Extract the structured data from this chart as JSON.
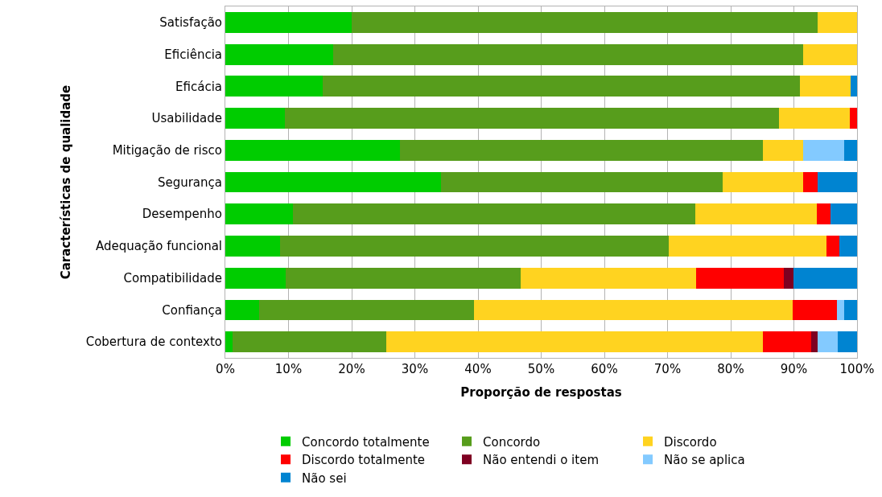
{
  "chart_data": {
    "type": "bar",
    "orientation": "horizontal",
    "stacked": true,
    "xlabel": "Proporção de respostas",
    "ylabel": "Características de qualidade",
    "categories": [
      "Satisfação",
      "Eficiência",
      "Eficácia",
      "Usabilidade",
      "Mitigação de risco",
      "Segurança",
      "Desempenho",
      "Adequação funcional",
      "Compatibilidade",
      "Confiança",
      "Cobertura de contexto"
    ],
    "series": [
      {
        "name": "Concordo totalmente",
        "color": "#00cc00",
        "values": [
          20.0,
          17.1,
          15.4,
          9.4,
          27.7,
          34.1,
          10.7,
          8.7,
          9.6,
          5.4,
          1.1
        ]
      },
      {
        "name": "Concordo",
        "color": "#579d1c",
        "values": [
          73.7,
          74.4,
          75.5,
          78.2,
          57.4,
          44.6,
          63.7,
          61.5,
          37.2,
          33.9,
          24.4
        ]
      },
      {
        "name": "Discordo",
        "color": "#ffd320",
        "values": [
          6.3,
          8.5,
          8.1,
          11.2,
          6.4,
          12.8,
          19.2,
          25.0,
          27.7,
          50.5,
          59.6
        ]
      },
      {
        "name": "Discordo totalmente",
        "color": "#ff0000",
        "values": [
          null,
          null,
          null,
          1.2,
          null,
          2.2,
          2.2,
          2.0,
          13.9,
          7.0,
          7.6
        ]
      },
      {
        "name": "Não entendi o item",
        "color": "#7e0021",
        "values": [
          null,
          null,
          null,
          null,
          null,
          null,
          null,
          null,
          1.5,
          null,
          1.0
        ]
      },
      {
        "name": "Não se aplica",
        "color": "#83caff",
        "values": [
          null,
          null,
          null,
          null,
          6.4,
          null,
          null,
          null,
          null,
          1.1,
          3.2
        ]
      },
      {
        "name": "Não sei",
        "color": "#0084d1",
        "values": [
          null,
          null,
          1.0,
          null,
          2.1,
          6.3,
          4.2,
          2.8,
          10.1,
          2.1,
          3.1
        ]
      }
    ],
    "xlim": [
      0,
      100
    ],
    "xticks": [
      {
        "value": 0,
        "label": "0%"
      },
      {
        "value": 10,
        "label": "10%"
      },
      {
        "value": 20,
        "label": "20%"
      },
      {
        "value": 30,
        "label": "30%"
      },
      {
        "value": 40,
        "label": "40%"
      },
      {
        "value": 50,
        "label": "50%"
      },
      {
        "value": 60,
        "label": "60%"
      },
      {
        "value": 70,
        "label": "70%"
      },
      {
        "value": 80,
        "label": "80%"
      },
      {
        "value": 90,
        "label": "90%"
      },
      {
        "value": 100,
        "label": "100%"
      }
    ],
    "grid": "x",
    "legend": "bottom"
  }
}
